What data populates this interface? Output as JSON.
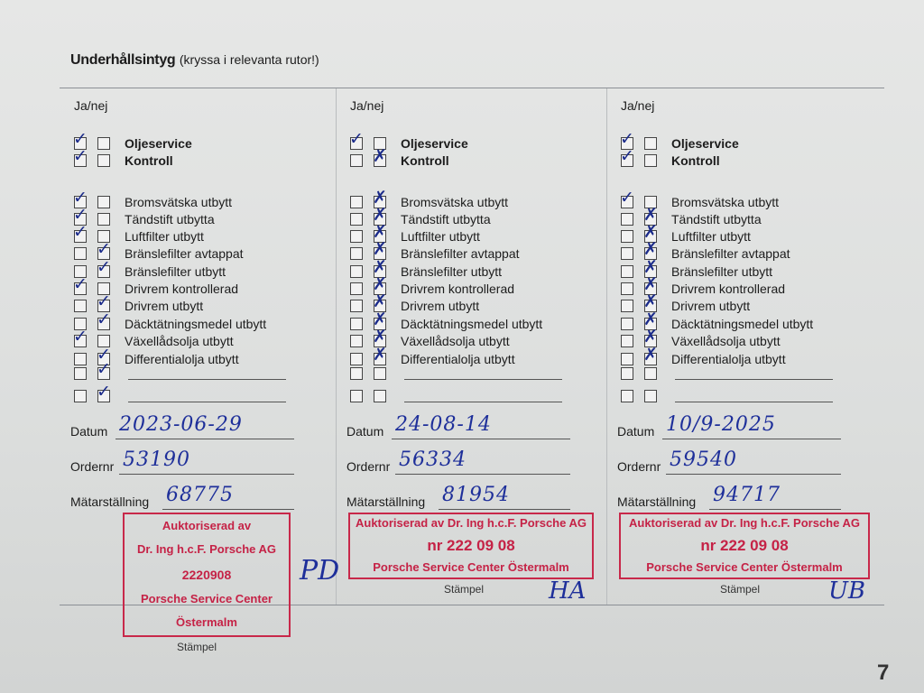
{
  "header": {
    "title_bold": "Underhållsintyg",
    "title_rest": "(kryssa i relevanta rutor!)"
  },
  "janej_label": "Ja/nej",
  "main_items": [
    "Oljeservice",
    "Kontroll"
  ],
  "items": [
    "Bromsvätska utbytt",
    "Tändstift utbytta",
    "Luftfilter utbytt",
    "Bränslefilter avtappat",
    "Bränslefilter utbytt",
    "Drivrem kontrollerad",
    "Drivrem utbytt",
    "Däcktätningsmedel utbytt",
    "Växellådsolja utbytt",
    "Differentialolja utbytt"
  ],
  "field_labels": {
    "date": "Datum",
    "order": "Ordernr",
    "odometer": "Mätarställning",
    "stamp": "Stämpel"
  },
  "mark_color": "#1e2f9a",
  "stamp_color": "#c8284a",
  "columns": [
    {
      "main_checks": [
        "ja",
        "ja"
      ],
      "item_checks": [
        "ja",
        "ja",
        "ja",
        "nej",
        "nej",
        "ja",
        "nej",
        "nej",
        "ja",
        "nej",
        "nej",
        "nej"
      ],
      "mark_style": "check",
      "date": "2023-06-29",
      "order": "53190",
      "odometer": "68775",
      "stamp": {
        "line1": "Auktoriserad av",
        "line2": "Dr. Ing h.c.F. Porsche AG",
        "line3": "2220908",
        "line4": "Porsche Service Center",
        "line5": "Östermalm"
      },
      "signature": "PD"
    },
    {
      "main_checks": [
        "ja",
        "nej"
      ],
      "item_checks": [
        "nej",
        "nej",
        "nej",
        "nej",
        "nej",
        "nej",
        "nej",
        "nej",
        "nej",
        "nej",
        "",
        ""
      ],
      "mark_style": "cross",
      "date": "24-08-14",
      "order": "56334",
      "odometer": "81954",
      "stamp": {
        "line1": "Auktoriserad av Dr. Ing h.c.F. Porsche AG",
        "line2": "nr 222 09 08",
        "line3": "Porsche Service Center Östermalm"
      },
      "signature": "HA"
    },
    {
      "main_checks": [
        "ja",
        "ja"
      ],
      "item_checks": [
        "ja",
        "nej",
        "nej",
        "nej",
        "nej",
        "nej",
        "nej",
        "nej",
        "nej",
        "nej",
        "",
        ""
      ],
      "mark_style": "cross",
      "date": "10/9-2025",
      "order": "59540",
      "odometer": "94717",
      "stamp": {
        "line1": "Auktoriserad av Dr. Ing h.c.F. Porsche AG",
        "line2": "nr 222 09 08",
        "line3": "Porsche Service Center Östermalm"
      },
      "signature": "UB"
    }
  ],
  "page_number": "7"
}
